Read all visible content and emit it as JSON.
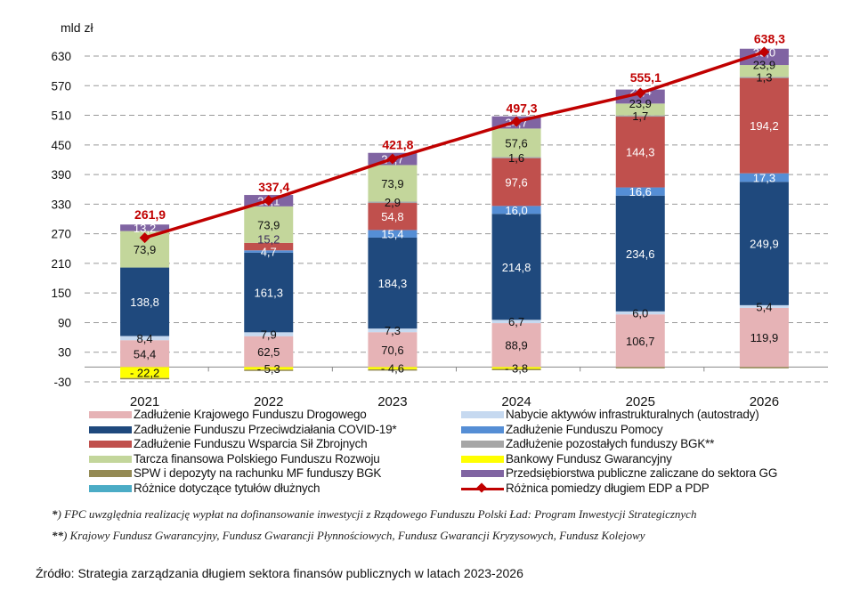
{
  "chart_data": {
    "type": "bar",
    "stacked": true,
    "ylabel": "mld zł",
    "ylim": [
      -30,
      660
    ],
    "yticks": [
      -30,
      30,
      90,
      150,
      210,
      270,
      330,
      390,
      450,
      510,
      570,
      630
    ],
    "grid": true,
    "legend_position": "bottom",
    "categories": [
      "2021",
      "2022",
      "2023",
      "2024",
      "2025",
      "2026"
    ],
    "series": [
      {
        "name": "Zadłużenie Krajowego Funduszu Drogowego",
        "color": "#e6b3b6",
        "label_color": "#111",
        "values": [
          54.4,
          62.5,
          70.6,
          88.9,
          106.7,
          119.9
        ],
        "labels": [
          "54,4",
          "62,5",
          "70,6",
          "88,9",
          "106,7",
          "119,9"
        ]
      },
      {
        "name": "Nabycie aktywów infrastrukturalnych (autostrady)",
        "color": "#c6d9f0",
        "label_color": "#111",
        "values": [
          8.4,
          7.9,
          7.3,
          6.7,
          6.0,
          5.4
        ],
        "labels": [
          "8,4",
          "7,9",
          "7,3",
          "6,7",
          "6,0",
          "5,4"
        ]
      },
      {
        "name": "Zadłużenie Funduszu Przeciwdziałania COVID-19*",
        "color": "#1f497d",
        "label_color": "#fff",
        "values": [
          138.8,
          161.3,
          184.3,
          214.8,
          234.6,
          249.9
        ],
        "labels": [
          "138,8",
          "161,3",
          "184,3",
          "214,8",
          "234,6",
          "249,9"
        ]
      },
      {
        "name": "Zadłużenie Funduszu Pomocy",
        "color": "#558ed5",
        "label_color": "#fff",
        "values": [
          0,
          4.7,
          15.4,
          16.0,
          16.6,
          17.3
        ],
        "labels": [
          "",
          "4,7",
          "15,4",
          "16,0",
          "16,6",
          "17,3"
        ]
      },
      {
        "name": "Zadłużenie Funduszu Wsparcia Sił Zbrojnych",
        "color": "#c0504d",
        "label_color": "#fff",
        "values": [
          0,
          15.2,
          54.8,
          97.6,
          144.3,
          194.2
        ],
        "labels": [
          "",
          "15,2",
          "54,8",
          "97,6",
          "144,3",
          "194,2"
        ]
      },
      {
        "name": "Zadłużenie pozostałych funduszy BGK**",
        "color": "#a6a6a6",
        "label_color": "#111",
        "values": [
          0,
          0,
          2.9,
          1.6,
          1.7,
          1.3
        ],
        "labels": [
          "",
          "",
          "2,9",
          "1,6",
          "1,7",
          "1,3"
        ]
      },
      {
        "name": "Tarcza finansowa Polskiego Funduszu Rozwoju",
        "color": "#c3d69b",
        "label_color": "#111",
        "values": [
          73.9,
          73.9,
          73.9,
          57.6,
          23.9,
          23.9
        ],
        "labels": [
          "73,9",
          "73,9",
          "73,9",
          "57,6",
          "23,9",
          "23,9"
        ]
      },
      {
        "name": "Przedsiębiorstwa publiczne zaliczane do sektora GG",
        "color": "#8064a2",
        "label_color": "#fff",
        "values": [
          13.2,
          23.1,
          24.7,
          24.7,
          28.4,
          33.0
        ],
        "labels": [
          "13,2",
          "23,1",
          "24,7",
          "24,7",
          "28,4",
          "33,0"
        ]
      },
      {
        "name": "Bankowy Fundusz Gwarancyjny",
        "color": "#ffff00",
        "label_color": "#111",
        "values": [
          -22.2,
          -5.3,
          -4.6,
          -3.8,
          0,
          0
        ],
        "labels": [
          "- 22,2",
          "- 5,3",
          "- 4,6",
          "- 3,8",
          "",
          ""
        ]
      },
      {
        "name": "SPW i depozyty na rachunku MF funduszy BGK",
        "color": "#948a54",
        "label_color": "#111",
        "values": [
          -1.5,
          -1.5,
          -1.5,
          -1.5,
          -1.5,
          -1.5
        ],
        "labels": [
          "",
          "",
          "",
          "",
          "",
          ""
        ]
      },
      {
        "name": "Różnice dotyczące tytułów dłużnych",
        "color": "#4bacc6",
        "label_color": "#111",
        "values": [
          0,
          0,
          0,
          0,
          0,
          0
        ],
        "labels": [
          "",
          "",
          "",
          "",
          "",
          ""
        ]
      }
    ],
    "line": {
      "name": "Różnica pomiedzy długiem EDP a PDP",
      "color": "#c00000",
      "values": [
        261.9,
        337.4,
        421.8,
        497.3,
        555.1,
        638.3
      ],
      "labels": [
        "261,9",
        "337,4",
        "421,8",
        "497,3",
        "555,1",
        "638,3"
      ]
    }
  },
  "legend_left": [
    0,
    2,
    4,
    6,
    9,
    10
  ],
  "legend_right": [
    1,
    3,
    5,
    8,
    7
  ],
  "footnotes": {
    "note1_mark": "*",
    "note1": ") FPC uwzględnia realizację wypłat na dofinansowanie inwestycji z Rządowego Funduszu Polski Ład: Program Inwestycji Strategicznych",
    "note2_mark": "**",
    "note2": ") Krajowy Fundusz Gwarancyjny, Fundusz Gwarancji Płynnościowych, Fundusz Gwarancji Kryzysowych, Fundusz Kolejowy"
  },
  "source": "Źródło: Strategia zarządzania długiem sektora finansów publicznych w latach 2023-2026"
}
